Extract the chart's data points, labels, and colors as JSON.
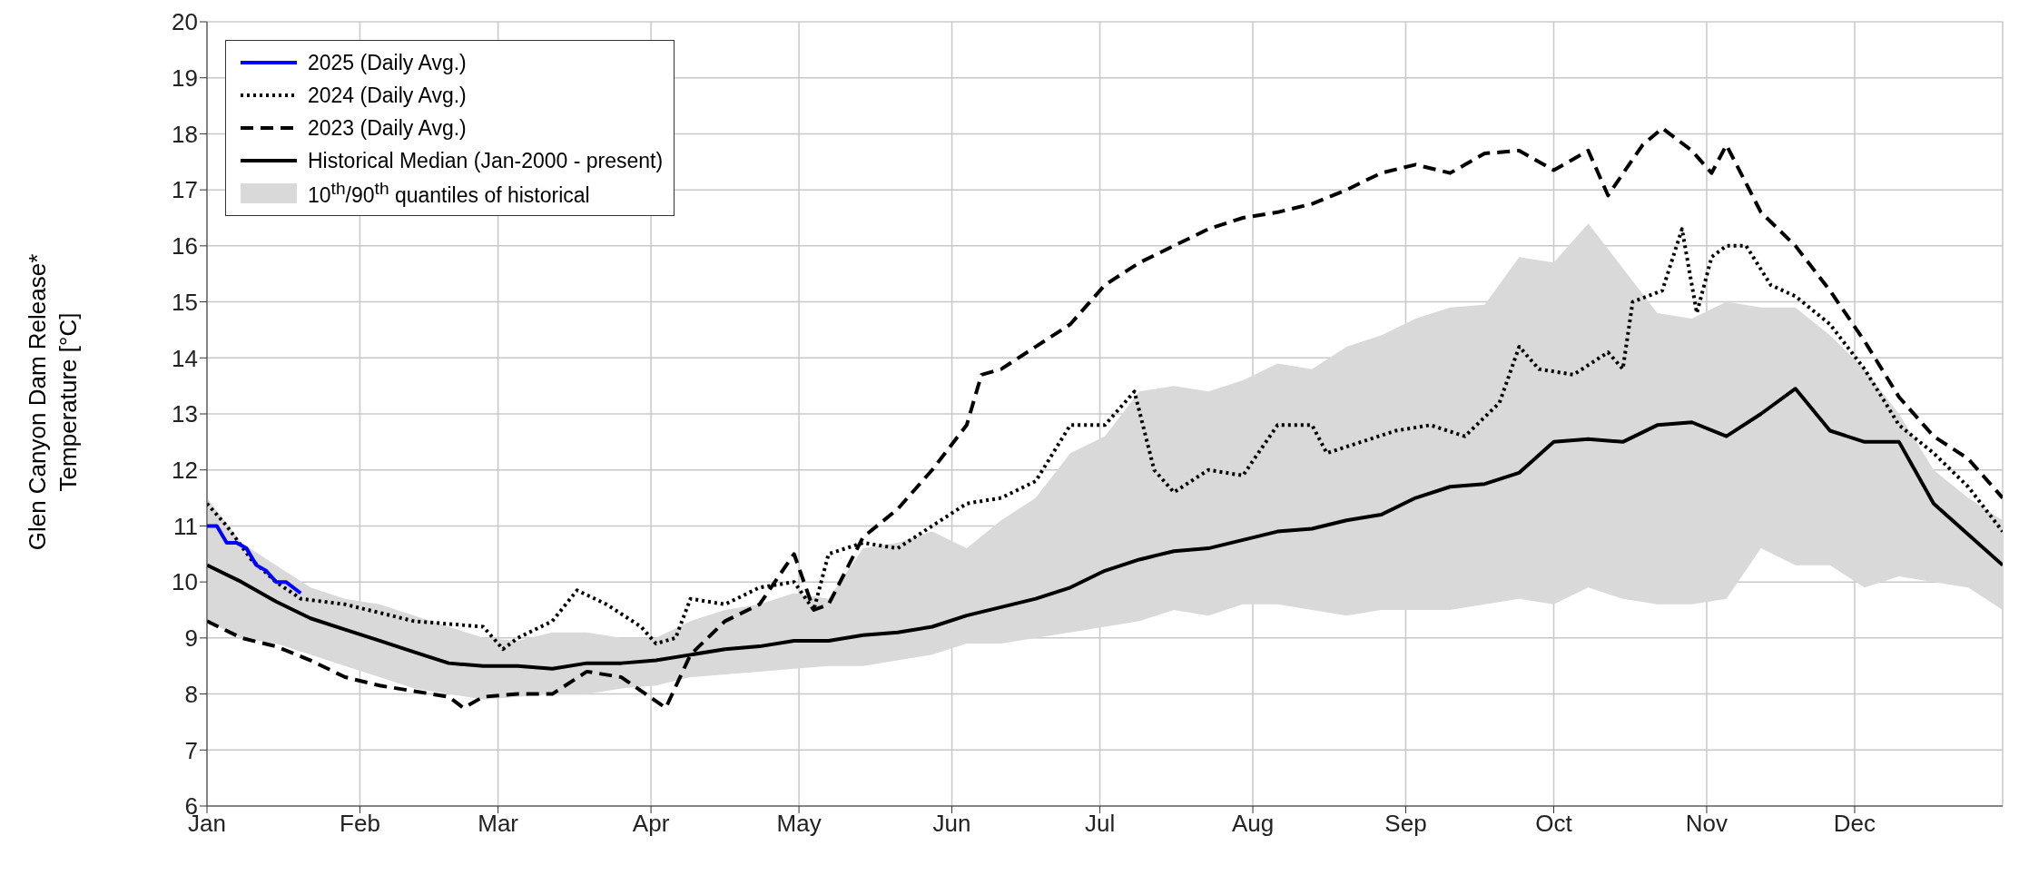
{
  "chart_data": {
    "type": "line",
    "ylabel": "Glen Canyon Dam Release*\nTemperature [°C]",
    "xlim": [
      "--01-01",
      "--12-31"
    ],
    "ylim": [
      6,
      20
    ],
    "yticks": [
      6,
      7,
      8,
      9,
      10,
      11,
      12,
      13,
      14,
      15,
      16,
      17,
      18,
      19,
      20
    ],
    "xticks": [
      {
        "value": "--01-01",
        "label": "Jan"
      },
      {
        "value": "--02-01",
        "label": "Feb"
      },
      {
        "value": "--03-01",
        "label": "Mar"
      },
      {
        "value": "--04-01",
        "label": "Apr"
      },
      {
        "value": "--05-01",
        "label": "May"
      },
      {
        "value": "--06-01",
        "label": "Jun"
      },
      {
        "value": "--07-01",
        "label": "Jul"
      },
      {
        "value": "--08-01",
        "label": "Aug"
      },
      {
        "value": "--09-01",
        "label": "Sep"
      },
      {
        "value": "--10-01",
        "label": "Oct"
      },
      {
        "value": "--11-01",
        "label": "Nov"
      },
      {
        "value": "--12-01",
        "label": "Dec"
      }
    ],
    "grid": true,
    "legend": "top left",
    "marker": "none",
    "annotations": [
      "10$^{th}$/90$^{th}$ quantiles of historical"
    ],
    "series": [
      {
        "name": "Historical Median (Jan-2000 - present)",
        "color": "#000000",
        "line_style": "solid",
        "x": [
          "--01-01",
          "--01-08",
          "--01-15",
          "--01-22",
          "--01-29",
          "--02-05",
          "--02-12",
          "--02-19",
          "--02-26",
          "--03-05",
          "--03-12",
          "--03-19",
          "--03-26",
          "--04-02",
          "--04-09",
          "--04-16",
          "--04-23",
          "--04-30",
          "--05-07",
          "--05-14",
          "--05-21",
          "--05-28",
          "--06-04",
          "--06-11",
          "--06-18",
          "--06-25",
          "--07-02",
          "--07-09",
          "--07-16",
          "--07-23",
          "--07-30",
          "--08-06",
          "--08-13",
          "--08-20",
          "--08-27",
          "--09-03",
          "--09-10",
          "--09-17",
          "--09-24",
          "--10-01",
          "--10-08",
          "--10-15",
          "--10-22",
          "--10-29",
          "--11-05",
          "--11-12",
          "--11-19",
          "--11-26",
          "--12-03",
          "--12-10",
          "--12-17",
          "--12-24",
          "--12-31"
        ],
        "values": [
          10.3,
          10.0,
          9.65,
          9.35,
          9.15,
          8.95,
          8.75,
          8.55,
          8.5,
          8.5,
          8.45,
          8.55,
          8.55,
          8.6,
          8.7,
          8.8,
          8.85,
          8.95,
          8.95,
          9.05,
          9.1,
          9.2,
          9.4,
          9.55,
          9.7,
          9.9,
          10.2,
          10.4,
          10.55,
          10.6,
          10.75,
          10.9,
          10.95,
          11.1,
          11.2,
          11.5,
          11.7,
          11.75,
          11.95,
          12.5,
          12.55,
          12.5,
          12.8,
          12.85,
          12.6,
          13.0,
          13.45,
          12.7,
          12.5,
          12.5,
          11.4,
          10.85,
          10.3
        ],
        "lower": [
          9.3,
          9.0,
          8.9,
          8.7,
          8.5,
          8.3,
          8.1,
          8.0,
          7.9,
          7.95,
          8.0,
          8.0,
          8.1,
          8.15,
          8.3,
          8.35,
          8.4,
          8.45,
          8.5,
          8.5,
          8.6,
          8.7,
          8.9,
          8.9,
          9.0,
          9.1,
          9.2,
          9.3,
          9.5,
          9.4,
          9.6,
          9.6,
          9.5,
          9.4,
          9.5,
          9.5,
          9.5,
          9.6,
          9.7,
          9.6,
          9.9,
          9.7,
          9.6,
          9.6,
          9.7,
          10.6,
          10.3,
          10.3,
          9.9,
          10.1,
          10.0,
          9.9,
          9.5
        ],
        "upper": [
          11.5,
          10.7,
          10.3,
          9.9,
          9.7,
          9.6,
          9.4,
          9.2,
          9.0,
          8.95,
          9.1,
          9.1,
          9.0,
          9.0,
          9.3,
          9.5,
          9.6,
          9.8,
          9.7,
          10.6,
          10.7,
          10.9,
          10.6,
          11.1,
          11.5,
          12.3,
          12.6,
          13.4,
          13.5,
          13.4,
          13.6,
          13.9,
          13.8,
          14.2,
          14.4,
          14.7,
          14.9,
          14.95,
          15.8,
          15.7,
          16.4,
          15.6,
          14.8,
          14.7,
          15.0,
          14.9,
          14.9,
          14.4,
          13.8,
          13.0,
          12.0,
          11.5,
          11.1
        ]
      },
      {
        "name": "2023 (Daily Avg.)",
        "color": "#000000",
        "line_style": "dashed",
        "x": [
          "--01-01",
          "--01-08",
          "--01-15",
          "--01-22",
          "--01-29",
          "--02-05",
          "--02-12",
          "--02-19",
          "--02-22",
          "--02-26",
          "--03-05",
          "--03-12",
          "--03-19",
          "--03-26",
          "--04-04",
          "--04-09",
          "--04-16",
          "--04-23",
          "--04-30",
          "--05-04",
          "--05-07",
          "--05-14",
          "--05-21",
          "--05-28",
          "--06-04",
          "--06-07",
          "--06-11",
          "--06-18",
          "--06-25",
          "--07-02",
          "--07-09",
          "--07-16",
          "--07-23",
          "--07-30",
          "--08-06",
          "--08-13",
          "--08-20",
          "--08-27",
          "--09-03",
          "--09-10",
          "--09-17",
          "--09-24",
          "--10-01",
          "--10-08",
          "--10-12",
          "--10-19",
          "--10-23",
          "--10-29",
          "--11-02",
          "--11-05",
          "--11-12",
          "--11-19",
          "--11-26",
          "--12-03",
          "--12-10",
          "--12-17",
          "--12-24",
          "--12-31"
        ],
        "values": [
          9.3,
          9.0,
          8.85,
          8.6,
          8.3,
          8.15,
          8.05,
          7.95,
          7.75,
          7.95,
          8.0,
          8.0,
          8.4,
          8.3,
          7.75,
          8.7,
          9.3,
          9.6,
          10.5,
          9.5,
          9.6,
          10.8,
          11.3,
          12.0,
          12.8,
          13.7,
          13.8,
          14.2,
          14.6,
          15.3,
          15.7,
          16.0,
          16.3,
          16.5,
          16.6,
          16.75,
          17.0,
          17.3,
          17.45,
          17.3,
          17.65,
          17.7,
          17.35,
          17.7,
          16.9,
          17.8,
          18.1,
          17.7,
          17.3,
          17.8,
          16.6,
          16.0,
          15.2,
          14.3,
          13.3,
          12.6,
          12.2,
          11.5
        ]
      },
      {
        "name": "2024 (Daily Avg.)",
        "color": "#000000",
        "line_style": "dotted",
        "x": [
          "--01-01",
          "--01-05",
          "--01-10",
          "--01-15",
          "--01-20",
          "--01-29",
          "--02-05",
          "--02-12",
          "--02-19",
          "--02-26",
          "--03-02",
          "--03-05",
          "--03-12",
          "--03-17",
          "--03-23",
          "--03-30",
          "--04-02",
          "--04-06",
          "--04-09",
          "--04-16",
          "--04-23",
          "--04-30",
          "--05-04",
          "--05-07",
          "--05-14",
          "--05-21",
          "--05-28",
          "--06-04",
          "--06-11",
          "--06-18",
          "--06-25",
          "--07-02",
          "--07-08",
          "--07-12",
          "--07-16",
          "--07-23",
          "--07-30",
          "--08-06",
          "--08-13",
          "--08-16",
          "--08-23",
          "--08-30",
          "--09-06",
          "--09-13",
          "--09-20",
          "--09-24",
          "--09-28",
          "--10-05",
          "--10-12",
          "--10-15",
          "--10-17",
          "--10-23",
          "--10-27",
          "--10-30",
          "--11-02",
          "--11-05",
          "--11-09",
          "--11-14",
          "--11-19",
          "--11-26",
          "--12-03",
          "--12-10",
          "--12-17",
          "--12-24",
          "--12-31"
        ],
        "values": [
          11.4,
          11.0,
          10.4,
          10.0,
          9.7,
          9.6,
          9.45,
          9.3,
          9.25,
          9.2,
          8.8,
          9.0,
          9.3,
          9.85,
          9.6,
          9.2,
          8.9,
          9.0,
          9.7,
          9.6,
          9.9,
          10.0,
          9.5,
          10.5,
          10.7,
          10.6,
          11.0,
          11.4,
          11.5,
          11.8,
          12.8,
          12.8,
          13.4,
          12.0,
          11.6,
          12.0,
          11.9,
          12.8,
          12.8,
          12.3,
          12.5,
          12.7,
          12.8,
          12.6,
          13.2,
          14.2,
          13.8,
          13.7,
          14.1,
          13.8,
          15.0,
          15.2,
          16.3,
          14.8,
          15.8,
          16.0,
          16.0,
          15.3,
          15.1,
          14.6,
          13.8,
          12.8,
          12.3,
          11.7,
          10.9
        ]
      },
      {
        "name": "2025 (Daily Avg.)",
        "color": "#0000ff",
        "line_style": "solid",
        "x": [
          "--01-01",
          "--01-03",
          "--01-05",
          "--01-07",
          "--01-09",
          "--01-11",
          "--01-13",
          "--01-15",
          "--01-17",
          "--01-20"
        ],
        "values": [
          11.0,
          11.0,
          10.7,
          10.7,
          10.6,
          10.3,
          10.2,
          10.0,
          10.0,
          9.8
        ]
      }
    ]
  }
}
